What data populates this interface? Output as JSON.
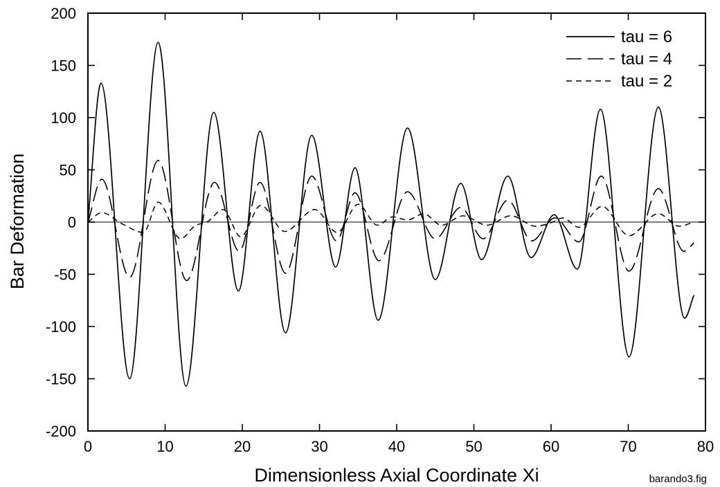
{
  "chart_data": {
    "type": "line",
    "title": "",
    "xlabel": "Dimensionless Axial Coordinate Xi",
    "ylabel": "Bar Deformation",
    "xlim": [
      0,
      80
    ],
    "ylim": [
      -200,
      200
    ],
    "xticks": [
      "0",
      "10",
      "20",
      "30",
      "40",
      "50",
      "60",
      "70",
      "80"
    ],
    "yticks": [
      "200",
      "150",
      "100",
      "50",
      "0",
      "-50",
      "-100",
      "-150",
      "-200"
    ],
    "grid": false,
    "zero_line": true,
    "legend_position": "top-right",
    "footnote": "barando3.fig",
    "series": [
      {
        "name": "tau = 6",
        "style": "solid",
        "points": [
          [
            0,
            0
          ],
          [
            1.7,
            133
          ],
          [
            5.4,
            -150
          ],
          [
            9.1,
            172
          ],
          [
            12.7,
            -157
          ],
          [
            16.3,
            105
          ],
          [
            19.5,
            -66
          ],
          [
            22.3,
            87
          ],
          [
            25.6,
            -106
          ],
          [
            29,
            83
          ],
          [
            32.1,
            -43
          ],
          [
            34.6,
            52
          ],
          [
            37.6,
            -94
          ],
          [
            41.4,
            90
          ],
          [
            45,
            -55
          ],
          [
            48.3,
            37
          ],
          [
            51,
            -36
          ],
          [
            54.4,
            44
          ],
          [
            57.4,
            -34
          ],
          [
            60.4,
            7
          ],
          [
            63.4,
            -45
          ],
          [
            66.4,
            108
          ],
          [
            70.1,
            -129
          ],
          [
            73.9,
            110
          ],
          [
            77.3,
            -92
          ],
          [
            78.5,
            -70
          ]
        ]
      },
      {
        "name": "tau = 4",
        "style": "long-dash",
        "points": [
          [
            0,
            0
          ],
          [
            1.8,
            41
          ],
          [
            5.4,
            -53
          ],
          [
            9.1,
            59
          ],
          [
            12.8,
            -56
          ],
          [
            16.4,
            38
          ],
          [
            19.6,
            -28
          ],
          [
            22.3,
            38
          ],
          [
            25.6,
            -49
          ],
          [
            29,
            44
          ],
          [
            32.2,
            -18
          ],
          [
            34.6,
            28
          ],
          [
            37.7,
            -37
          ],
          [
            41.4,
            29
          ],
          [
            45,
            -16
          ],
          [
            48.3,
            14
          ],
          [
            51.2,
            -16
          ],
          [
            54.4,
            21
          ],
          [
            57.5,
            -18
          ],
          [
            60.5,
            4
          ],
          [
            63.6,
            -19
          ],
          [
            66.5,
            44
          ],
          [
            70.1,
            -47
          ],
          [
            73.9,
            32
          ],
          [
            77.2,
            -28
          ],
          [
            78.5,
            -20
          ]
        ]
      },
      {
        "name": "tau = 2",
        "style": "short-dash",
        "points": [
          [
            0,
            0
          ],
          [
            1.8,
            9
          ],
          [
            4.5,
            -2
          ],
          [
            7.2,
            -10
          ],
          [
            9.1,
            19
          ],
          [
            12,
            -16
          ],
          [
            14,
            -3
          ],
          [
            15.4,
            0
          ],
          [
            17.5,
            12
          ],
          [
            19.8,
            -14
          ],
          [
            22.4,
            16
          ],
          [
            25.5,
            -9
          ],
          [
            29.4,
            12
          ],
          [
            32.3,
            -10
          ],
          [
            35,
            17
          ],
          [
            37.5,
            -3
          ],
          [
            39.5,
            5
          ],
          [
            41.4,
            2
          ],
          [
            43.5,
            8
          ],
          [
            45.8,
            -3
          ],
          [
            48.6,
            6
          ],
          [
            51.7,
            -3
          ],
          [
            54.8,
            6
          ],
          [
            58,
            -4
          ],
          [
            60.2,
            0
          ],
          [
            61.5,
            4
          ],
          [
            63.6,
            -5
          ],
          [
            66.6,
            15
          ],
          [
            70.1,
            -13
          ],
          [
            73.9,
            8
          ],
          [
            76.6,
            -4
          ],
          [
            78.5,
            0
          ]
        ]
      }
    ]
  }
}
